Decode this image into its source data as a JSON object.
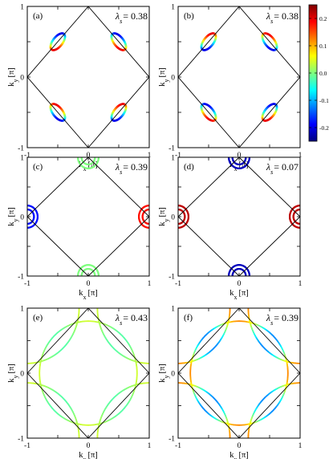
{
  "chart_data": [
    {
      "type": "scatter",
      "panel_label": "(a)",
      "lambda_label": "λ",
      "lambda_sub": "s",
      "lambda_value": "= 0.38",
      "xlabel": "k",
      "xlabel_sub": "x",
      "xlabel_unit": "[π]",
      "ylabel": "k",
      "ylabel_sub": "y",
      "ylabel_unit": "[π]",
      "xlim": [
        -1,
        1
      ],
      "ylim": [
        -1,
        1
      ],
      "x_ticks": [
        "-1",
        "0",
        "1"
      ],
      "y_ticks": [
        "-1",
        "0",
        "1"
      ],
      "fermi_pockets": "ellipses centred at (±0.5, ±0.5), elongated along the zone-boundary diagonals"
    },
    {
      "type": "scatter",
      "panel_label": "(b)",
      "lambda_label": "λ",
      "lambda_sub": "s",
      "lambda_value": "= 0.38",
      "xlabel": "k",
      "xlabel_sub": "x",
      "xlabel_unit": "[π]",
      "ylabel": "k",
      "ylabel_sub": "y",
      "ylabel_unit": "[π]",
      "xlim": [
        -1,
        1
      ],
      "ylim": [
        -1,
        1
      ],
      "x_ticks": [
        "-1",
        "0",
        "1"
      ],
      "y_ticks": [
        "-1",
        "0",
        "1"
      ],
      "fermi_pockets": "ellipses centred at (±0.5, ±0.5), elongated along the zone-boundary diagonals"
    },
    {
      "type": "scatter",
      "panel_label": "(c)",
      "lambda_label": "λ",
      "lambda_sub": "s",
      "lambda_value": "= 0.39",
      "xlabel": "k",
      "xlabel_sub": "x",
      "xlabel_unit": "[π]",
      "ylabel": "k",
      "ylabel_sub": "y",
      "ylabel_unit": "[π]",
      "xlim": [
        -1,
        1
      ],
      "ylim": [
        -1,
        1
      ],
      "x_ticks": [
        "-1",
        "0",
        "1"
      ],
      "y_ticks": [
        "-1",
        "0",
        "1"
      ],
      "fermi_pockets": "double arcs at (0, ±1) and (±1, 0)"
    },
    {
      "type": "scatter",
      "panel_label": "(d)",
      "lambda_label": "λ",
      "lambda_sub": "s",
      "lambda_value": "= 0.07",
      "xlabel": "k",
      "xlabel_sub": "x",
      "xlabel_unit": "[π]",
      "ylabel": "k",
      "ylabel_sub": "y",
      "ylabel_unit": "[π]",
      "xlim": [
        -1,
        1
      ],
      "ylim": [
        -1,
        1
      ],
      "x_ticks": [
        "-1",
        "0",
        "1"
      ],
      "y_ticks": [
        "-1",
        "0",
        "1"
      ],
      "fermi_pockets": "double arcs at (0, ±1) and (±1, 0)"
    },
    {
      "type": "scatter",
      "panel_label": "(e)",
      "lambda_label": "λ",
      "lambda_sub": "s",
      "lambda_value": "= 0.43",
      "xlabel": "k",
      "xlabel_sub": "x",
      "xlabel_unit": "[π]",
      "ylabel": "k",
      "ylabel_sub": "y",
      "ylabel_unit": "[π]",
      "xlim": [
        -1,
        1
      ],
      "ylim": [
        -1,
        1
      ],
      "x_ticks": [
        "-1",
        "0",
        "1"
      ],
      "y_ticks": [
        "-1",
        "0",
        "1"
      ],
      "fermi_pockets": "large circle radius ~0.8 around Γ plus arcs around (±1, ±1)"
    },
    {
      "type": "scatter",
      "panel_label": "(f)",
      "lambda_label": "λ",
      "lambda_sub": "s",
      "lambda_value": "= 0.39",
      "xlabel": "k",
      "xlabel_sub": "x",
      "xlabel_unit": "[π]",
      "ylabel": "k",
      "ylabel_sub": "y",
      "ylabel_unit": "[π]",
      "xlim": [
        -1,
        1
      ],
      "ylim": [
        -1,
        1
      ],
      "x_ticks": [
        "-1",
        "0",
        "1"
      ],
      "y_ticks": [
        "-1",
        "0",
        "1"
      ],
      "fermi_pockets": "large circle radius ~0.8 around Γ plus arcs around (±1, ±1)"
    }
  ],
  "colorbar": {
    "ticks": [
      "0.2",
      "0.1",
      "0.0",
      "-0.1",
      "-0.2"
    ],
    "tick_values": [
      0.2,
      0.1,
      0.0,
      -0.1,
      -0.2
    ],
    "range": [
      -0.25,
      0.25
    ],
    "colors": [
      "#00007f",
      "#0000ff",
      "#007fff",
      "#00ffff",
      "#7fff7f",
      "#ffff00",
      "#ff7f00",
      "#ff0000",
      "#7f0000"
    ]
  }
}
